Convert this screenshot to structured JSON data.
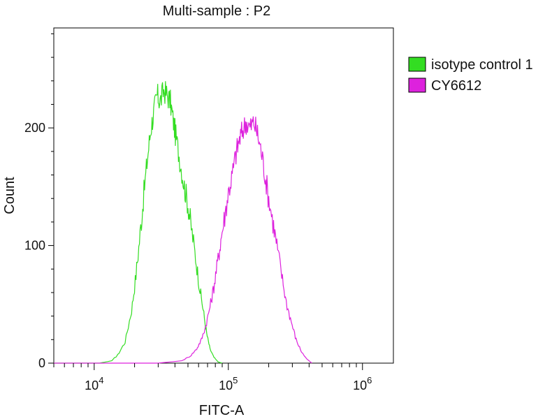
{
  "chart_data": {
    "type": "line",
    "title": "Multi-sample : P2",
    "xlabel": "FITC-A",
    "ylabel": "Count",
    "x_scale": "log",
    "xlim": [
      5000,
      1700000
    ],
    "ylim": [
      0,
      285
    ],
    "y_ticks": [
      0,
      100,
      200
    ],
    "x_ticks": [
      {
        "value": 10000,
        "base": "10",
        "exp": "4"
      },
      {
        "value": 100000,
        "base": "10",
        "exp": "5"
      },
      {
        "value": 1000000,
        "base": "10",
        "exp": "6"
      }
    ],
    "legend_position": "top-right outside",
    "grid": false,
    "series": [
      {
        "name": "isotype control 1",
        "color": "#33dd22",
        "x": [
          5000,
          11000,
          13500,
          15000,
          17000,
          19000,
          20500,
          22000,
          23500,
          25000,
          26500,
          28000,
          29500,
          31000,
          33000,
          35000,
          37000,
          39000,
          41000,
          44000,
          47000,
          50000,
          53000,
          57000,
          61000,
          65000,
          69000,
          73000,
          78000,
          84000,
          90000
        ],
        "y": [
          0,
          0,
          2,
          7,
          18,
          45,
          75,
          110,
          145,
          175,
          200,
          215,
          228,
          222,
          232,
          228,
          222,
          205,
          190,
          170,
          150,
          135,
          115,
          90,
          65,
          45,
          25,
          12,
          5,
          1,
          0
        ]
      },
      {
        "name": "CY6612",
        "color": "#dd22dd",
        "x": [
          5000,
          30000,
          45000,
          52000,
          58000,
          63000,
          68000,
          73000,
          78000,
          83000,
          88000,
          94000,
          100000,
          107000,
          114000,
          121000,
          128000,
          136000,
          145000,
          155000,
          165000,
          176000,
          188000,
          200000,
          215000,
          230000,
          250000,
          270000,
          295000,
          320000,
          350000,
          380000,
          420000
        ],
        "y": [
          0,
          0,
          2,
          6,
          12,
          20,
          32,
          48,
          65,
          85,
          105,
          125,
          145,
          160,
          178,
          190,
          198,
          205,
          200,
          205,
          195,
          180,
          160,
          140,
          120,
          100,
          75,
          52,
          35,
          20,
          10,
          4,
          0
        ]
      }
    ]
  }
}
